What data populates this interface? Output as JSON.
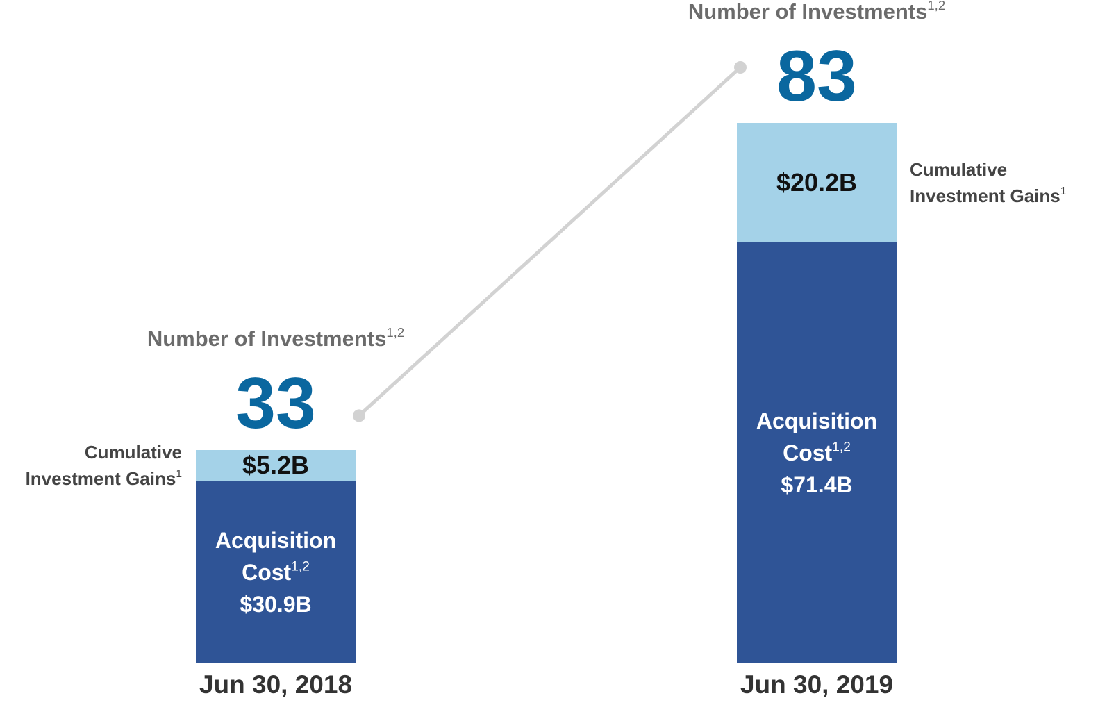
{
  "chart_data": {
    "type": "bar",
    "stacked": true,
    "categories": [
      "Jun 30, 2018",
      "Jun 30, 2019"
    ],
    "series": [
      {
        "name": "Acquisition Cost",
        "footnote": "1,2",
        "color": "#2f5496",
        "values": [
          30.9,
          71.4
        ],
        "value_labels": [
          "$30.9B",
          "$71.4B"
        ]
      },
      {
        "name": "Cumulative Investment Gains",
        "footnote": "1",
        "color": "#a4d2e8",
        "values": [
          5.2,
          20.2
        ],
        "value_labels": [
          "$5.2B",
          "$20.2B"
        ]
      }
    ],
    "investments": {
      "name": "Number of Investments",
      "footnote": "1,2",
      "color": "#0a679f",
      "values": [
        33,
        83
      ]
    }
  }
}
